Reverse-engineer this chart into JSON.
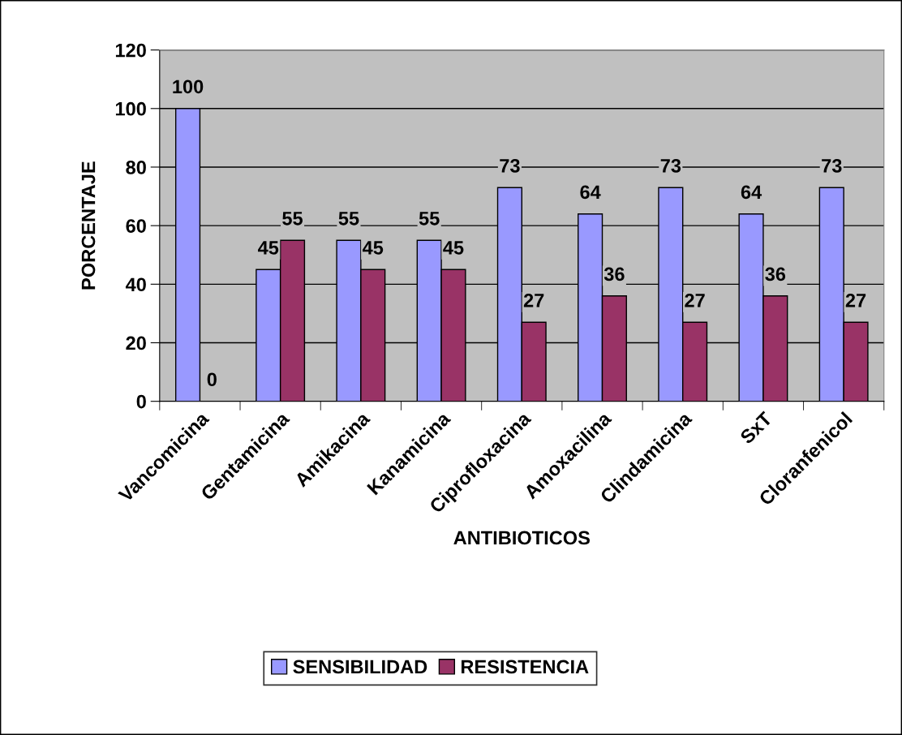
{
  "chart_data": {
    "type": "bar",
    "xlabel": "ANTIBIOTICOS",
    "ylabel": "PORCENTAJE",
    "categories": [
      "Vancomicina",
      "Gentamicina",
      "Amikacina",
      "Kanamicina",
      "Ciprofloxacina",
      "Amoxacilina",
      "Clindamicina",
      "SxT",
      "Cloranfenicol"
    ],
    "series": [
      {
        "name": "SENSIBILIDAD",
        "color": "#9999ff",
        "values": [
          100,
          45,
          55,
          55,
          73,
          64,
          73,
          64,
          73
        ]
      },
      {
        "name": "RESISTENCIA",
        "color": "#993366",
        "values": [
          0,
          55,
          45,
          45,
          27,
          36,
          27,
          36,
          27
        ]
      }
    ],
    "ylim": [
      0,
      120
    ],
    "yticks": [
      0,
      20,
      40,
      60,
      80,
      100,
      120
    ],
    "grid": "y",
    "legend": "bottom",
    "data_labels": true
  }
}
